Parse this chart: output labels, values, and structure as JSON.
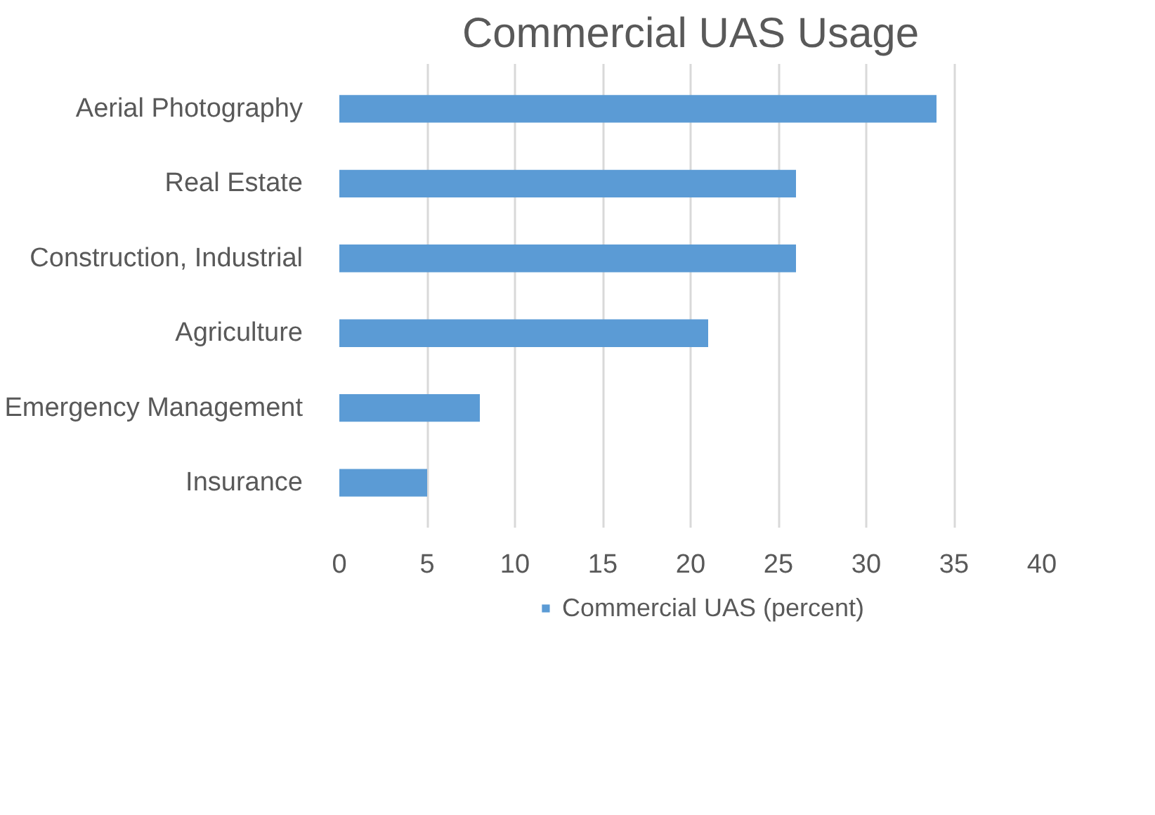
{
  "chart_data": {
    "type": "bar",
    "orientation": "horizontal",
    "title": "Commercial UAS Usage",
    "categories": [
      "Aerial Photography",
      "Real Estate",
      "Construction, Industrial",
      "Agriculture",
      "Emergency Management",
      "Insurance"
    ],
    "series": [
      {
        "name": "Commercial UAS (percent)",
        "color": "#5b9bd5",
        "values": [
          34,
          26,
          26,
          21,
          8,
          5
        ]
      }
    ],
    "xlim": [
      0,
      40
    ],
    "xticks": [
      0,
      5,
      10,
      15,
      20,
      25,
      30,
      35,
      40
    ],
    "grid": "x",
    "legend": "bottom"
  }
}
